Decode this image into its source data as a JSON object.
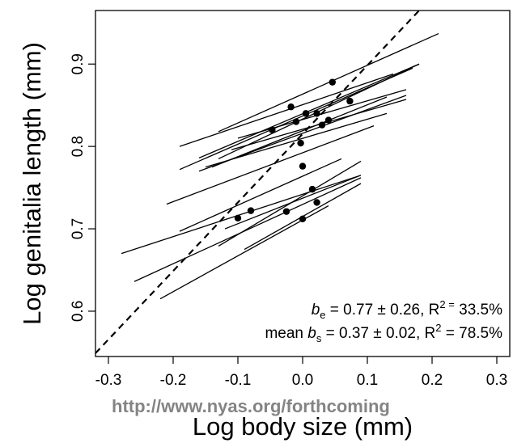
{
  "chart_data": {
    "type": "scatter",
    "xlabel": "Log body size (mm)",
    "ylabel": "Log genitalia length (mm)",
    "xlim": [
      -0.32,
      0.32
    ],
    "ylim": [
      0.545,
      0.965
    ],
    "x_ticks": [
      -0.3,
      -0.2,
      -0.1,
      0.0,
      0.1,
      0.2,
      0.3
    ],
    "x_tick_labels": [
      "-0.3",
      "-0.2",
      "-0.1",
      "0.0",
      "0.1",
      "0.2",
      "0.3"
    ],
    "y_ticks": [
      0.6,
      0.7,
      0.8,
      0.9
    ],
    "y_tick_labels": [
      "0.6",
      "0.7",
      "0.8",
      "0.9"
    ],
    "grid": false,
    "points": [
      {
        "x": 0.046,
        "y": 0.878
      },
      {
        "x": -0.018,
        "y": 0.848
      },
      {
        "x": 0.005,
        "y": 0.84
      },
      {
        "x": 0.022,
        "y": 0.84
      },
      {
        "x": 0.073,
        "y": 0.855
      },
      {
        "x": -0.047,
        "y": 0.82
      },
      {
        "x": -0.01,
        "y": 0.83
      },
      {
        "x": 0.04,
        "y": 0.832
      },
      {
        "x": 0.03,
        "y": 0.826
      },
      {
        "x": -0.003,
        "y": 0.804
      },
      {
        "x": 0.0,
        "y": 0.776
      },
      {
        "x": 0.015,
        "y": 0.748
      },
      {
        "x": -0.025,
        "y": 0.721
      },
      {
        "x": 0.022,
        "y": 0.732
      },
      {
        "x": 0.0,
        "y": 0.712
      },
      {
        "x": -0.08,
        "y": 0.722
      },
      {
        "x": -0.1,
        "y": 0.713
      }
    ],
    "segments": [
      {
        "x1": -0.13,
        "y1": 0.818,
        "x2": 0.21,
        "y2": 0.937
      },
      {
        "x1": -0.19,
        "y1": 0.8,
        "x2": 0.14,
        "y2": 0.888
      },
      {
        "x1": -0.19,
        "y1": 0.772,
        "x2": 0.17,
        "y2": 0.895
      },
      {
        "x1": -0.16,
        "y1": 0.786,
        "x2": 0.18,
        "y2": 0.9
      },
      {
        "x1": -0.13,
        "y1": 0.785,
        "x2": 0.18,
        "y2": 0.9
      },
      {
        "x1": -0.1,
        "y1": 0.81,
        "x2": 0.16,
        "y2": 0.869
      },
      {
        "x1": -0.16,
        "y1": 0.77,
        "x2": 0.16,
        "y2": 0.862
      },
      {
        "x1": -0.11,
        "y1": 0.796,
        "x2": 0.16,
        "y2": 0.857
      },
      {
        "x1": -0.14,
        "y1": 0.775,
        "x2": 0.13,
        "y2": 0.86
      },
      {
        "x1": -0.15,
        "y1": 0.775,
        "x2": 0.13,
        "y2": 0.84
      },
      {
        "x1": -0.21,
        "y1": 0.73,
        "x2": 0.11,
        "y2": 0.825
      },
      {
        "x1": -0.19,
        "y1": 0.697,
        "x2": 0.06,
        "y2": 0.785
      },
      {
        "x1": -0.28,
        "y1": 0.67,
        "x2": 0.09,
        "y2": 0.765
      },
      {
        "x1": -0.13,
        "y1": 0.679,
        "x2": 0.09,
        "y2": 0.782
      },
      {
        "x1": -0.26,
        "y1": 0.636,
        "x2": 0.09,
        "y2": 0.762
      },
      {
        "x1": -0.12,
        "y1": 0.7,
        "x2": 0.09,
        "y2": 0.765
      },
      {
        "x1": -0.09,
        "y1": 0.675,
        "x2": 0.09,
        "y2": 0.755
      },
      {
        "x1": -0.22,
        "y1": 0.615,
        "x2": 0.04,
        "y2": 0.728
      }
    ],
    "fit_line": {
      "style": "dashed",
      "x1": -0.32,
      "y1": 0.549,
      "x2": 0.18,
      "y2": 0.965
    },
    "annotations": {
      "line1_sym": "b",
      "line1_sub": "e",
      "line1_rest": " = 0.77 ± 0.26, R",
      "line1_sup": "2 =",
      "line1_end": " 33.5%",
      "line2_prefix": "mean ",
      "line2_sym": "b",
      "line2_sub": "s",
      "line2_rest": " = 0.37 ± 0.02, R",
      "line2_sup": "2",
      "line2_end": " = 78.5%"
    }
  },
  "watermark": "http://www.nyas.org/forthcoming"
}
